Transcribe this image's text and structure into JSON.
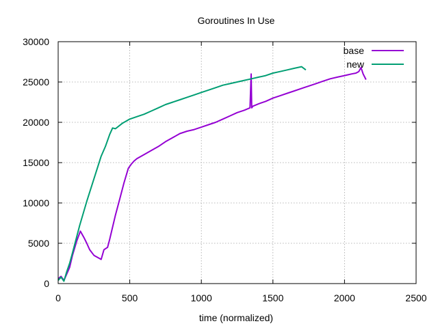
{
  "chart_data": {
    "type": "line",
    "title": "Goroutines In Use",
    "xlabel": "time (normalized)",
    "ylabel": "",
    "xlim": [
      0,
      2500
    ],
    "ylim": [
      0,
      30000
    ],
    "x_ticks": [
      "0",
      "500",
      "1000",
      "1500",
      "2000",
      "2500"
    ],
    "y_ticks": [
      "0",
      "5000",
      "10000",
      "15000",
      "20000",
      "25000",
      "30000"
    ],
    "grid": true,
    "legend_position": "top-right",
    "series": [
      {
        "name": "base",
        "color": "#9400d3",
        "x": [
          0,
          20,
          40,
          60,
          80,
          100,
          130,
          155,
          180,
          200,
          220,
          250,
          280,
          300,
          320,
          345,
          360,
          380,
          400,
          430,
          460,
          490,
          510,
          530,
          550,
          600,
          650,
          700,
          750,
          800,
          850,
          900,
          950,
          1000,
          1050,
          1100,
          1150,
          1200,
          1250,
          1300,
          1340,
          1348,
          1352,
          1360,
          1400,
          1450,
          1500,
          1550,
          1600,
          1650,
          1700,
          1750,
          1800,
          1850,
          1900,
          1950,
          2000,
          2050,
          2080,
          2100,
          2115,
          2130,
          2150
        ],
        "y": [
          600,
          900,
          400,
          1200,
          2000,
          3500,
          5300,
          6500,
          5700,
          5000,
          4200,
          3500,
          3200,
          3000,
          4200,
          4500,
          5500,
          7000,
          8500,
          10500,
          12500,
          14300,
          14800,
          15200,
          15500,
          16000,
          16500,
          17000,
          17600,
          18100,
          18600,
          18900,
          19100,
          19400,
          19700,
          20000,
          20400,
          20800,
          21200,
          21500,
          21800,
          26000,
          21800,
          22000,
          22300,
          22600,
          23000,
          23300,
          23600,
          23900,
          24200,
          24500,
          24800,
          25100,
          25400,
          25600,
          25800,
          26000,
          26100,
          26300,
          26800,
          26000,
          25300
        ]
      },
      {
        "name": "new",
        "color": "#009e73",
        "x": [
          0,
          20,
          40,
          60,
          80,
          100,
          150,
          200,
          250,
          300,
          330,
          360,
          380,
          400,
          450,
          500,
          550,
          600,
          650,
          700,
          750,
          800,
          850,
          900,
          950,
          1000,
          1050,
          1100,
          1150,
          1200,
          1250,
          1300,
          1350,
          1400,
          1450,
          1500,
          1550,
          1600,
          1650,
          1700,
          1730
        ],
        "y": [
          400,
          800,
          300,
          1500,
          2500,
          3800,
          7200,
          10200,
          13000,
          15800,
          17000,
          18500,
          19300,
          19200,
          19900,
          20400,
          20700,
          21000,
          21400,
          21800,
          22200,
          22500,
          22800,
          23100,
          23400,
          23700,
          24000,
          24300,
          24600,
          24800,
          25000,
          25200,
          25400,
          25600,
          25800,
          26100,
          26300,
          26500,
          26700,
          26900,
          26500
        ]
      }
    ]
  }
}
